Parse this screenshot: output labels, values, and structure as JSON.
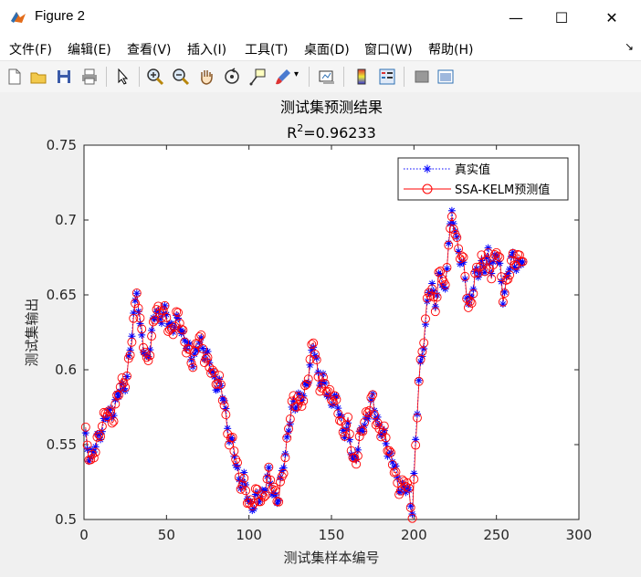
{
  "window": {
    "title": "Figure 2",
    "buttons": {
      "minimize": "—",
      "maximize": "☐",
      "close": "✕"
    }
  },
  "menu": {
    "items": [
      "文件(F)",
      "编辑(E)",
      "查看(V)",
      "插入(I)",
      "工具(T)",
      "桌面(D)",
      "窗口(W)",
      "帮助(H)"
    ]
  },
  "toolbar": {
    "icons": [
      "new-figure-icon",
      "open-file-icon",
      "save-icon",
      "print-icon",
      "edit-plot-arrow-icon",
      "zoom-in-icon",
      "zoom-out-icon",
      "pan-hand-icon",
      "rotate-3d-icon",
      "data-cursor-icon",
      "brush-icon",
      "link-plot-icon",
      "colorbar-icon",
      "legend-icon",
      "hide-plot-tools-icon",
      "show-plot-tools-icon"
    ]
  },
  "chart_data": {
    "type": "line",
    "title": "测试集预测结果",
    "subtitle": "R^2=0.96233",
    "subtitle_parts": {
      "base": "R",
      "sup": "2",
      "rest": "=0.96233"
    },
    "xlabel": "测试集样本编号",
    "ylabel": "测试集输出",
    "xlim": [
      0,
      300
    ],
    "ylim": [
      0.5,
      0.75
    ],
    "xticks": [
      "0",
      "50",
      "100",
      "150",
      "200",
      "250",
      "300"
    ],
    "yticks": [
      "0.5",
      "0.55",
      "0.6",
      "0.65",
      "0.7",
      "0.75"
    ],
    "grid": false,
    "legend_position": "top-right",
    "keypoints_true": [
      [
        1,
        0.552
      ],
      [
        4,
        0.542
      ],
      [
        7,
        0.548
      ],
      [
        10,
        0.56
      ],
      [
        14,
        0.568
      ],
      [
        18,
        0.575
      ],
      [
        22,
        0.585
      ],
      [
        26,
        0.595
      ],
      [
        28,
        0.612
      ],
      [
        30,
        0.636
      ],
      [
        32,
        0.657
      ],
      [
        34,
        0.625
      ],
      [
        36,
        0.614
      ],
      [
        38,
        0.608
      ],
      [
        41,
        0.622
      ],
      [
        44,
        0.642
      ],
      [
        46,
        0.635
      ],
      [
        50,
        0.636
      ],
      [
        54,
        0.628
      ],
      [
        58,
        0.632
      ],
      [
        62,
        0.616
      ],
      [
        66,
        0.608
      ],
      [
        68,
        0.612
      ],
      [
        70,
        0.617
      ],
      [
        74,
        0.613
      ],
      [
        78,
        0.595
      ],
      [
        82,
        0.59
      ],
      [
        85,
        0.578
      ],
      [
        88,
        0.558
      ],
      [
        91,
        0.542
      ],
      [
        94,
        0.528
      ],
      [
        97,
        0.525
      ],
      [
        100,
        0.512
      ],
      [
        103,
        0.51
      ],
      [
        106,
        0.514
      ],
      [
        109,
        0.521
      ],
      [
        112,
        0.528
      ],
      [
        115,
        0.518
      ],
      [
        118,
        0.512
      ],
      [
        121,
        0.54
      ],
      [
        124,
        0.56
      ],
      [
        127,
        0.575
      ],
      [
        130,
        0.583
      ],
      [
        133,
        0.58
      ],
      [
        136,
        0.598
      ],
      [
        139,
        0.615
      ],
      [
        142,
        0.598
      ],
      [
        145,
        0.593
      ],
      [
        148,
        0.58
      ],
      [
        151,
        0.582
      ],
      [
        154,
        0.575
      ],
      [
        157,
        0.562
      ],
      [
        160,
        0.558
      ],
      [
        163,
        0.54
      ],
      [
        166,
        0.548
      ],
      [
        169,
        0.562
      ],
      [
        172,
        0.57
      ],
      [
        175,
        0.578
      ],
      [
        178,
        0.568
      ],
      [
        181,
        0.555
      ],
      [
        184,
        0.548
      ],
      [
        187,
        0.54
      ],
      [
        190,
        0.525
      ],
      [
        193,
        0.522
      ],
      [
        196,
        0.518
      ],
      [
        199,
        0.51
      ],
      [
        201,
        0.55
      ],
      [
        203,
        0.592
      ],
      [
        205,
        0.61
      ],
      [
        207,
        0.632
      ],
      [
        209,
        0.65
      ],
      [
        211,
        0.655
      ],
      [
        213,
        0.648
      ],
      [
        215,
        0.66
      ],
      [
        217,
        0.658
      ],
      [
        219,
        0.652
      ],
      [
        221,
        0.69
      ],
      [
        223,
        0.7
      ],
      [
        225,
        0.695
      ],
      [
        227,
        0.68
      ],
      [
        229,
        0.672
      ],
      [
        231,
        0.658
      ],
      [
        233,
        0.645
      ],
      [
        235,
        0.652
      ],
      [
        237,
        0.66
      ],
      [
        239,
        0.665
      ],
      [
        241,
        0.672
      ],
      [
        243,
        0.668
      ],
      [
        245,
        0.675
      ],
      [
        247,
        0.67
      ],
      [
        250,
        0.678
      ],
      [
        252,
        0.665
      ],
      [
        254,
        0.65
      ],
      [
        256,
        0.66
      ],
      [
        258,
        0.668
      ],
      [
        260,
        0.675
      ],
      [
        262,
        0.672
      ],
      [
        264,
        0.67
      ],
      [
        266,
        0.672
      ]
    ],
    "series": [
      {
        "name": "真实值",
        "color": "#0000ff",
        "marker": "asterisk",
        "line": "dotted",
        "offset_amp": 0
      },
      {
        "name": "SSA-KELM预测值",
        "color": "#ff0000",
        "marker": "circle",
        "line": "solid",
        "offset_amp": 0.004
      }
    ]
  }
}
